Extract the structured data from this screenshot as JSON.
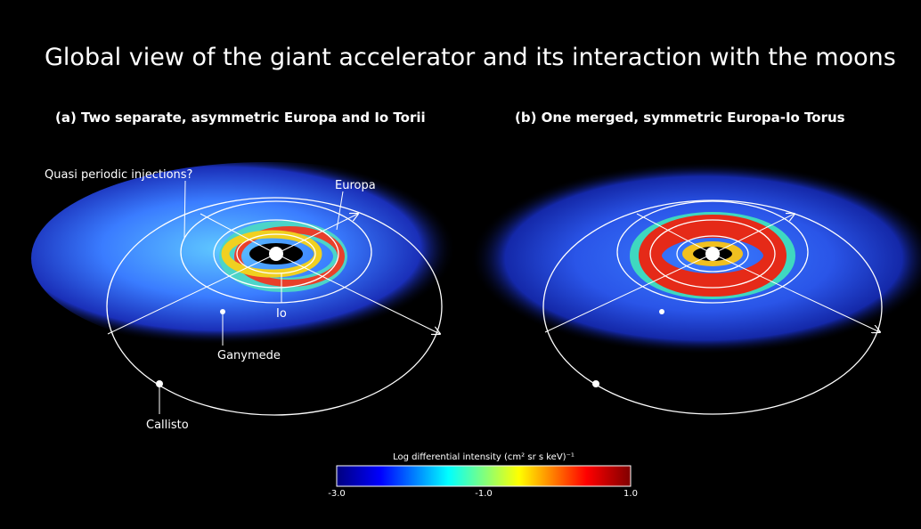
{
  "title": "Global view of the giant accelerator and its interaction with the moons",
  "panels": [
    {
      "label": "(a) Two separate, asymmetric Europa and Io Torii",
      "annotations": [
        "Quasi periodic injections?",
        "Europa",
        "Io",
        "Ganymede",
        "Callisto"
      ]
    },
    {
      "label": "(b) One merged, symmetric Europa-Io Torus"
    }
  ],
  "colorbar": {
    "label": "Log differential intensity (cm² sr s keV)⁻¹",
    "ticks": [
      "-3.0",
      "-1.0",
      "1.0"
    ]
  }
}
